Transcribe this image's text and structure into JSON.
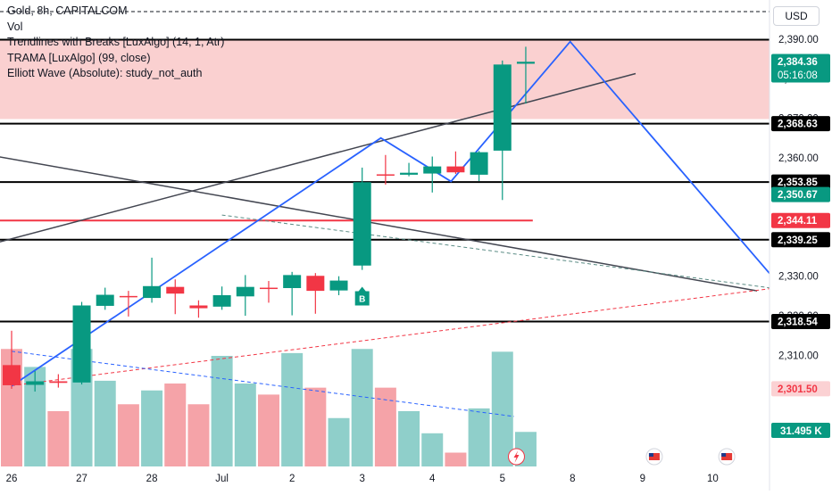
{
  "legend": {
    "symbol": "Gold, 8h, CAPITALCOM",
    "vol": "Vol",
    "indicator_1": "Trendlines with Breaks [LuxAlgo] (14, 1, Atr)",
    "indicator_2": "TRAMA [LuxAlgo] (99, close)",
    "indicator_3": "Elliott Wave (Absolute): study_not_auth"
  },
  "currency_button": "USD",
  "countdown": "05:16:08",
  "breakout_label": "B",
  "colors": {
    "up": "#089981",
    "down": "#f23645",
    "vol_up": "#8fcfca",
    "vol_down": "#f5a3a8",
    "wave": "#2962ff",
    "zone": "#f9c8c8",
    "level_line": "#000000",
    "red_level": "#f23645",
    "trend_line": "#434651"
  },
  "chart_data": {
    "type": "candlestick",
    "y_axis": {
      "range": [
        2292,
        2394
      ],
      "ticks": [
        2310,
        2320,
        2330,
        2340,
        2350,
        2360,
        2370,
        2380,
        2390
      ],
      "tick_labels": [
        "2,310.00",
        "2,320.00",
        "2,330.00",
        "2,340.00",
        "2,350.00",
        "2,360.00",
        "2,370.00",
        "2,380.00",
        "2,390.00"
      ]
    },
    "x_axis": {
      "ticks": [
        {
          "label": "26",
          "x": 1.0
        },
        {
          "label": "27",
          "x": 4.0
        },
        {
          "label": "28",
          "x": 7.0
        },
        {
          "label": "Jul",
          "x": 10.0
        },
        {
          "label": "2",
          "x": 13.0
        },
        {
          "label": "3",
          "x": 16.0
        },
        {
          "label": "4",
          "x": 19.0
        },
        {
          "label": "5",
          "x": 22.0
        },
        {
          "label": "8",
          "x": 25.0
        },
        {
          "label": "9",
          "x": 28.0
        },
        {
          "label": "10",
          "x": 31.0
        }
      ]
    },
    "candles": [
      {
        "i": 0,
        "o": 2307.5,
        "h": 2316.2,
        "l": 2301.5,
        "c": 2302.4
      },
      {
        "i": 1,
        "o": 2302.5,
        "h": 2306.0,
        "l": 2300.8,
        "c": 2303.4
      },
      {
        "i": 2,
        "o": 2303.4,
        "h": 2305.2,
        "l": 2301.8,
        "c": 2303.0
      },
      {
        "i": 3,
        "o": 2303.1,
        "h": 2323.5,
        "l": 2302.6,
        "c": 2322.6
      },
      {
        "i": 4,
        "o": 2322.5,
        "h": 2327.1,
        "l": 2321.5,
        "c": 2325.3
      },
      {
        "i": 5,
        "o": 2325.0,
        "h": 2326.3,
        "l": 2319.8,
        "c": 2324.8
      },
      {
        "i": 6,
        "o": 2324.5,
        "h": 2334.7,
        "l": 2323.3,
        "c": 2327.5
      },
      {
        "i": 7,
        "o": 2327.3,
        "h": 2329.2,
        "l": 2320.4,
        "c": 2325.6
      },
      {
        "i": 8,
        "o": 2322.6,
        "h": 2323.9,
        "l": 2319.5,
        "c": 2321.9
      },
      {
        "i": 9,
        "o": 2322.3,
        "h": 2327.4,
        "l": 2321.5,
        "c": 2325.2
      },
      {
        "i": 10,
        "o": 2324.9,
        "h": 2330.3,
        "l": 2320.0,
        "c": 2327.3
      },
      {
        "i": 11,
        "o": 2327.1,
        "h": 2328.8,
        "l": 2323.3,
        "c": 2326.8
      },
      {
        "i": 12,
        "o": 2327.0,
        "h": 2331.1,
        "l": 2320.1,
        "c": 2330.3
      },
      {
        "i": 13,
        "o": 2330.1,
        "h": 2330.8,
        "l": 2320.5,
        "c": 2326.3
      },
      {
        "i": 14,
        "o": 2326.4,
        "h": 2330.0,
        "l": 2325.2,
        "c": 2328.9
      },
      {
        "i": 15,
        "o": 2332.7,
        "h": 2357.5,
        "l": 2331.6,
        "c": 2353.8
      },
      {
        "i": 16,
        "o": 2355.8,
        "h": 2360.7,
        "l": 2353.2,
        "c": 2355.7
      },
      {
        "i": 17,
        "o": 2355.7,
        "h": 2358.7,
        "l": 2355.3,
        "c": 2356.2
      },
      {
        "i": 18,
        "o": 2356.0,
        "h": 2360.3,
        "l": 2351.2,
        "c": 2357.8
      },
      {
        "i": 19,
        "o": 2357.8,
        "h": 2361.6,
        "l": 2355.9,
        "c": 2356.3
      },
      {
        "i": 20,
        "o": 2355.7,
        "h": 2361.7,
        "l": 2354.1,
        "c": 2361.4
      },
      {
        "i": 21,
        "o": 2361.8,
        "h": 2384.6,
        "l": 2349.3,
        "c": 2383.6
      },
      {
        "i": 22,
        "o": 2383.8,
        "h": 2388.1,
        "l": 2373.7,
        "c": 2384.3
      }
    ],
    "volume_axis_label": "31.495 K",
    "volume_relative": [
      0.85,
      0.72,
      0.4,
      0.85,
      0.62,
      0.45,
      0.55,
      0.6,
      0.45,
      0.8,
      0.6,
      0.52,
      0.82,
      0.57,
      0.35,
      0.85,
      0.57,
      0.4,
      0.24,
      0.1,
      0.42,
      0.83,
      0.25
    ],
    "horizontal_levels": [
      {
        "value": 2389.9,
        "label": ""
      },
      {
        "value": 2368.63,
        "label": "2,368.63"
      },
      {
        "value": 2353.85,
        "label": "2,353.85"
      },
      {
        "value": 2339.25,
        "label": "2,339.25"
      },
      {
        "value": 2318.54,
        "label": "2,318.54"
      }
    ],
    "red_level": {
      "value": 2344.11,
      "label": "2,344.11"
    },
    "resistance_zone": [
      2369.8,
      2389.9
    ],
    "price_labels": [
      {
        "value": 2384.36,
        "label": "2,384.36",
        "kind": "last"
      },
      {
        "value": 2350.67,
        "label": "2,350.67",
        "kind": "teal"
      },
      {
        "value": 2301.5,
        "label": "2,301.50",
        "kind": "red_light"
      }
    ],
    "elliott_wave": [
      {
        "x": 0.0,
        "y": 2302.2
      },
      {
        "x": 15.8,
        "y": 2365.0
      },
      {
        "x": 18.8,
        "y": 2354.0
      },
      {
        "x": 23.9,
        "y": 2389.4
      },
      {
        "x": 32.9,
        "y": 2327.5
      }
    ],
    "trend_lines": [
      {
        "x1": -0.5,
        "y1": 2338.7,
        "x2": 26.7,
        "y2": 2381.3,
        "style": "solid"
      },
      {
        "x1": -0.5,
        "y1": 2360.2,
        "x2": 31.9,
        "y2": 2326.3,
        "style": "solid"
      },
      {
        "x1": 9.0,
        "y1": 2345.5,
        "x2": 32.9,
        "y2": 2326.7,
        "style": "dashed"
      },
      {
        "x1": 0.0,
        "y1": 2302.3,
        "x2": 32.9,
        "y2": 2327.2,
        "style": "dashed_red"
      },
      {
        "x1": 0.0,
        "y1": 2311.0,
        "x2": 21.5,
        "y2": 2294.5,
        "style": "dashed_blue"
      }
    ]
  }
}
